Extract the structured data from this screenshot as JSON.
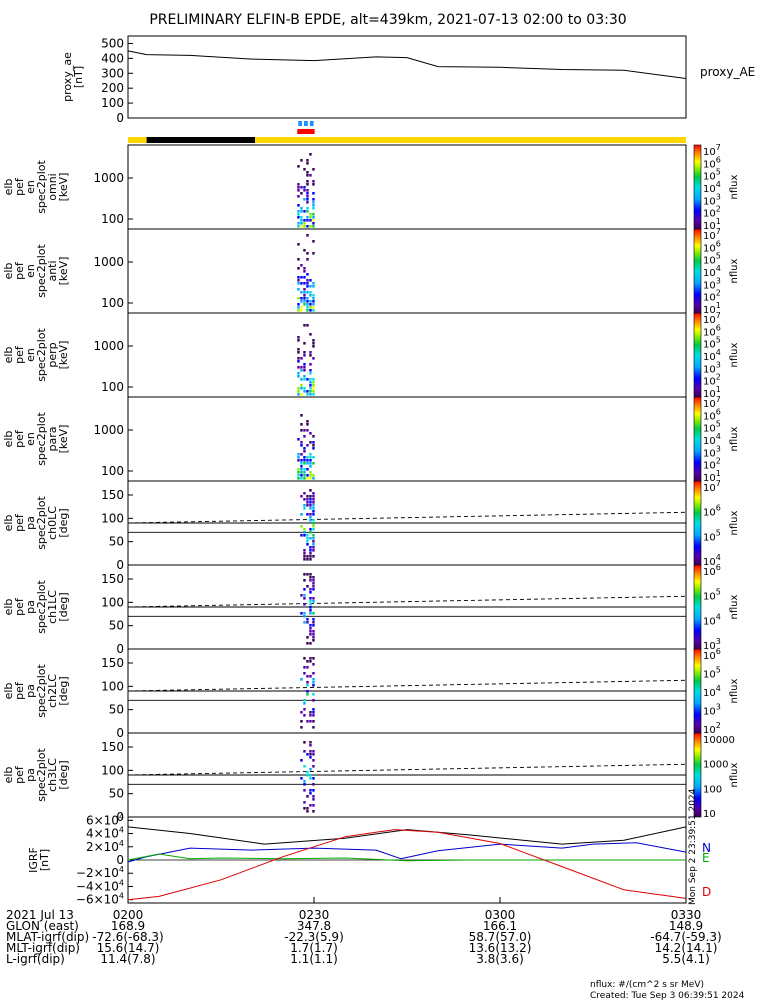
{
  "title": "PRELIMINARY ELFIN-B EPDE, alt=439km, 2021-07-13 02:00 to 03:30",
  "chart_data": [
    {
      "type": "line",
      "panel": "proxy_ae",
      "ylabel": [
        "proxy_ae",
        "[nT]"
      ],
      "side_label": "proxy_AE",
      "yticks": [
        "500",
        "400",
        "300",
        "200",
        "100",
        "0"
      ],
      "ylim": [
        0,
        550
      ],
      "x": [
        0,
        3,
        10,
        20,
        30,
        40,
        45,
        50,
        60,
        70,
        80,
        90
      ],
      "values": [
        450,
        425,
        420,
        395,
        385,
        410,
        405,
        345,
        340,
        325,
        320,
        265
      ]
    },
    {
      "type": "bar",
      "panel": "status_bars",
      "segments": [
        {
          "x0": 0,
          "x1": 3,
          "color": "#ffd700"
        },
        {
          "x0": 3,
          "x1": 20.5,
          "color": "#000000"
        },
        {
          "x0": 20.5,
          "x1": 90,
          "color": "#ffd700"
        }
      ],
      "markers": [
        {
          "x0": 27.3,
          "x1": 30.1,
          "row": "upper",
          "color": "#1e90ff"
        },
        {
          "x0": 27.3,
          "x1": 30.1,
          "row": "lower",
          "color": "#ff0000"
        }
      ]
    },
    {
      "type": "heatmap",
      "panel": "spec_en_omni",
      "ylabel": [
        "elb",
        "pef",
        "en",
        "spec2plot",
        "omni",
        "[keV]"
      ],
      "yticks": [
        "1000",
        "100"
      ],
      "colorbar": {
        "label": "nflux",
        "ticks": [
          "10^7",
          "10^6",
          "10^5",
          "10^4",
          "10^3",
          "10^2",
          "10^1"
        ]
      },
      "active_interval": [
        27.3,
        30.1
      ]
    },
    {
      "type": "heatmap",
      "panel": "spec_en_anti",
      "ylabel": [
        "elb",
        "pef",
        "en",
        "spec2plot",
        "anti",
        "[keV]"
      ],
      "yticks": [
        "1000",
        "100"
      ],
      "colorbar": {
        "label": "nflux",
        "ticks": [
          "10^7",
          "10^6",
          "10^5",
          "10^4",
          "10^3",
          "10^2",
          "10^1"
        ]
      },
      "active_interval": [
        27.3,
        30.1
      ]
    },
    {
      "type": "heatmap",
      "panel": "spec_en_perp",
      "ylabel": [
        "elb",
        "pef",
        "en",
        "spec2plot",
        "perp",
        "[keV]"
      ],
      "yticks": [
        "1000",
        "100"
      ],
      "colorbar": {
        "label": "nflux",
        "ticks": [
          "10^7",
          "10^6",
          "10^5",
          "10^4",
          "10^3",
          "10^2",
          "10^1"
        ]
      },
      "active_interval": [
        27.3,
        30.1
      ]
    },
    {
      "type": "heatmap",
      "panel": "spec_en_para",
      "ylabel": [
        "elb",
        "pef",
        "en",
        "spec2plot",
        "para",
        "[keV]"
      ],
      "yticks": [
        "1000",
        "100"
      ],
      "colorbar": {
        "label": "nflux",
        "ticks": [
          "10^7",
          "10^6",
          "10^5",
          "10^4",
          "10^3",
          "10^2",
          "10^1"
        ]
      },
      "active_interval": [
        27.3,
        30.1
      ]
    },
    {
      "type": "heatmap",
      "panel": "spec_pa_ch0",
      "ylabel": [
        "elb",
        "pef",
        "pa",
        "spec2plot",
        "ch0LC",
        "[deg]"
      ],
      "yticks": [
        "150",
        "100",
        "50",
        "0"
      ],
      "ylim": [
        0,
        180
      ],
      "colorbar": {
        "label": "nflux",
        "ticks": [
          "10^7",
          "10^6",
          "10^5",
          "10^4"
        ]
      },
      "active_interval": [
        27.3,
        30.1
      ],
      "dashed_line": [
        90,
        113
      ]
    },
    {
      "type": "heatmap",
      "panel": "spec_pa_ch1",
      "ylabel": [
        "elb",
        "pef",
        "pa",
        "spec2plot",
        "ch1LC",
        "[deg]"
      ],
      "yticks": [
        "150",
        "100",
        "50",
        "0"
      ],
      "ylim": [
        0,
        180
      ],
      "colorbar": {
        "label": "nflux",
        "ticks": [
          "10^6",
          "10^5",
          "10^4",
          "10^3"
        ]
      },
      "active_interval": [
        27.3,
        30.1
      ],
      "dashed_line": [
        90,
        113
      ]
    },
    {
      "type": "heatmap",
      "panel": "spec_pa_ch2",
      "ylabel": [
        "elb",
        "pef",
        "pa",
        "spec2plot",
        "ch2LC",
        "[deg]"
      ],
      "yticks": [
        "150",
        "100",
        "50",
        "0"
      ],
      "ylim": [
        0,
        180
      ],
      "colorbar": {
        "label": "nflux",
        "ticks": [
          "10^6",
          "10^5",
          "10^4",
          "10^3",
          "10^2"
        ]
      },
      "active_interval": [
        27.3,
        30.1
      ],
      "dashed_line": [
        90,
        113
      ]
    },
    {
      "type": "heatmap",
      "panel": "spec_pa_ch3",
      "ylabel": [
        "elb",
        "pef",
        "pa",
        "spec2plot",
        "ch3LC",
        "[deg]"
      ],
      "yticks": [
        "150",
        "100",
        "50",
        "0"
      ],
      "ylim": [
        0,
        180
      ],
      "colorbar": {
        "label": "nflux",
        "ticks": [
          "10000",
          "1000",
          "100",
          "10"
        ]
      },
      "active_interval": [
        27.3,
        30.1
      ],
      "dashed_line": [
        90,
        113
      ]
    },
    {
      "type": "line",
      "panel": "igrf",
      "ylabel": [
        "IGRF",
        "[nT]"
      ],
      "yticks": [
        "6×10^4",
        "4×10^4",
        "2×10^4",
        "0",
        "−2×10^4",
        "−4×10^4",
        "−6×10^4"
      ],
      "ylim": [
        -65000,
        65000
      ],
      "series_labels": [
        {
          "name": "N",
          "color": "#0000cd"
        },
        {
          "name": "E",
          "color": "#00aa00"
        },
        {
          "name": "D",
          "color": "#dd0000"
        }
      ],
      "series": [
        {
          "color": "#000000",
          "x": [
            0,
            10,
            22,
            35,
            45,
            55,
            70,
            80,
            90
          ],
          "values": [
            50000,
            40000,
            24000,
            33000,
            46000,
            38000,
            24000,
            30000,
            50000
          ]
        },
        {
          "color": "#0000cd",
          "x": [
            0,
            3,
            10,
            20,
            30,
            40,
            44,
            50,
            60,
            70,
            75,
            82,
            90
          ],
          "values": [
            -3000,
            5000,
            18000,
            15000,
            18000,
            15000,
            2000,
            14000,
            24000,
            18000,
            24000,
            26000,
            12000
          ]
        },
        {
          "color": "#00aa00",
          "x": [
            0,
            5,
            10,
            15,
            25,
            35,
            45,
            55,
            65,
            75,
            90
          ],
          "values": [
            0,
            9000,
            2000,
            3000,
            2000,
            3000,
            -1000,
            0,
            0,
            0,
            0
          ]
        },
        {
          "color": "#dd0000",
          "x": [
            0,
            5,
            15,
            25,
            35,
            43,
            50,
            60,
            70,
            80,
            90
          ],
          "values": [
            -60000,
            -55000,
            -30000,
            5000,
            35000,
            46000,
            42000,
            25000,
            -10000,
            -45000,
            -58000
          ]
        }
      ]
    }
  ],
  "xaxis": {
    "ticks": [
      {
        "t": 0,
        "label": "0200"
      },
      {
        "t": 30,
        "label": "0230"
      },
      {
        "t": 60,
        "label": "0300"
      },
      {
        "t": 90,
        "label": "0330"
      }
    ],
    "rows": [
      {
        "label": "2021 Jul 13",
        "values": [
          "",
          "",
          "",
          ""
        ]
      },
      {
        "label": "GLON (east)",
        "values": [
          "168.9",
          "347.8",
          "166.1",
          "148.9"
        ]
      },
      {
        "label": "MLAT-igrf(dip)",
        "values": [
          "-72.6(-68.3)",
          "-22.3(5.9)",
          "58.7(57.0)",
          "-64.7(-59.3)"
        ]
      },
      {
        "label": "MLT-igrf(dip)",
        "values": [
          "15.6(14.7)",
          "1.7(1.7)",
          "13.6(13.2)",
          "14.2(14.1)"
        ]
      },
      {
        "label": "L-igrf(dip)",
        "values": [
          "11.4(7.8)",
          "1.1(1.1)",
          "3.8(3.6)",
          "5.5(4.1)"
        ]
      }
    ]
  },
  "created_stamp": "Mon Sep  2 23:39:51 2024",
  "footnote_units": "nflux: #/(cm^2 s sr MeV)",
  "footnote_created": "Created: Tue Sep  3 06:39:51 2024"
}
